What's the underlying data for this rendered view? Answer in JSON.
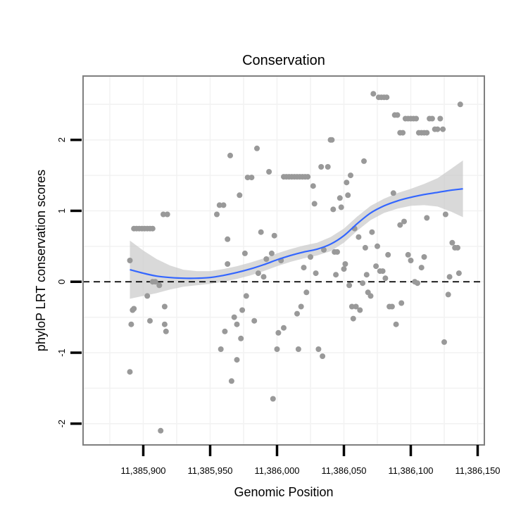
{
  "chart_data": {
    "type": "scatter",
    "title": "Conservation",
    "xlabel": "Genomic Position",
    "ylabel": "phyloP LRT conservation scores",
    "xlim": [
      11385855,
      11386155
    ],
    "ylim": [
      -2.3,
      2.9
    ],
    "x_ticks": [
      11385900,
      11385950,
      11386000,
      11386050,
      11386100,
      11386150
    ],
    "x_tick_labels": [
      "11,385,900",
      "11,385,950",
      "11,386,000",
      "11,386,050",
      "11,386,100",
      "11,386,150"
    ],
    "y_ticks": [
      -2,
      -1,
      0,
      1,
      2
    ],
    "y_tick_labels": [
      "-2",
      "-1",
      "0",
      "1",
      "2"
    ],
    "grid": true,
    "reference_line": {
      "y": 0,
      "style": "dashed"
    },
    "colors": {
      "points": "#999999",
      "smooth": "#3366ff",
      "band": "#cccccc",
      "panel_border": "#7f7f7f",
      "grid": "#f2f2f2"
    },
    "series": [
      {
        "name": "scores",
        "points": [
          [
            11385890,
            0.3
          ],
          [
            11385890,
            -1.27
          ],
          [
            11385891,
            -0.6
          ],
          [
            11385892,
            -0.4
          ],
          [
            11385893,
            -0.38
          ],
          [
            11385893,
            0.75
          ],
          [
            11385895,
            0.75
          ],
          [
            11385897,
            0.75
          ],
          [
            11385899,
            0.75
          ],
          [
            11385901,
            0.75
          ],
          [
            11385903,
            0.75
          ],
          [
            11385905,
            0.75
          ],
          [
            11385907,
            0.75
          ],
          [
            11385903,
            -0.2
          ],
          [
            11385905,
            -0.55
          ],
          [
            11385907,
            0.0
          ],
          [
            11385909,
            0.0
          ],
          [
            11385912,
            -0.05
          ],
          [
            11385913,
            -2.1
          ],
          [
            11385915,
            0.95
          ],
          [
            11385918,
            0.95
          ],
          [
            11385916,
            -0.6
          ],
          [
            11385917,
            -0.7
          ],
          [
            11385916,
            -0.35
          ],
          [
            11385955,
            0.95
          ],
          [
            11385957,
            1.08
          ],
          [
            11385960,
            1.08
          ],
          [
            11385958,
            -0.95
          ],
          [
            11385961,
            -0.7
          ],
          [
            11385963,
            0.25
          ],
          [
            11385963,
            0.6
          ],
          [
            11385965,
            1.78
          ],
          [
            11385966,
            -1.4
          ],
          [
            11385968,
            -0.5
          ],
          [
            11385970,
            -0.6
          ],
          [
            11385970,
            -1.1
          ],
          [
            11385972,
            1.22
          ],
          [
            11385973,
            -0.8
          ],
          [
            11385974,
            -0.4
          ],
          [
            11385976,
            0.4
          ],
          [
            11385977,
            -0.2
          ],
          [
            11385978,
            1.47
          ],
          [
            11385981,
            1.47
          ],
          [
            11385983,
            -0.55
          ],
          [
            11385985,
            1.88
          ],
          [
            11385986,
            0.12
          ],
          [
            11385988,
            0.7
          ],
          [
            11385990,
            0.07
          ],
          [
            11385992,
            0.32
          ],
          [
            11385994,
            1.55
          ],
          [
            11385996,
            0.4
          ],
          [
            11385998,
            0.65
          ],
          [
            11385997,
            -1.65
          ],
          [
            11386000,
            -0.95
          ],
          [
            11386001,
            -0.72
          ],
          [
            11386003,
            0.3
          ],
          [
            11386005,
            -0.65
          ],
          [
            11386005,
            1.48
          ],
          [
            11386007,
            1.48
          ],
          [
            11386009,
            1.48
          ],
          [
            11386011,
            1.48
          ],
          [
            11386013,
            1.48
          ],
          [
            11386015,
            1.48
          ],
          [
            11386017,
            1.48
          ],
          [
            11386019,
            1.48
          ],
          [
            11386021,
            1.48
          ],
          [
            11386023,
            1.48
          ],
          [
            11386015,
            -0.45
          ],
          [
            11386016,
            -0.95
          ],
          [
            11386018,
            -0.35
          ],
          [
            11386020,
            0.2
          ],
          [
            11386022,
            -0.15
          ],
          [
            11386025,
            0.35
          ],
          [
            11386027,
            1.35
          ],
          [
            11386028,
            1.1
          ],
          [
            11386029,
            0.12
          ],
          [
            11386031,
            -0.95
          ],
          [
            11386033,
            1.62
          ],
          [
            11386034,
            -1.05
          ],
          [
            11386035,
            0.45
          ],
          [
            11386038,
            1.62
          ],
          [
            11386040,
            2.0
          ],
          [
            11386041,
            2.0
          ],
          [
            11386042,
            1.02
          ],
          [
            11386043,
            0.42
          ],
          [
            11386044,
            0.1
          ],
          [
            11386045,
            0.42
          ],
          [
            11386047,
            1.18
          ],
          [
            11386048,
            1.05
          ],
          [
            11386050,
            0.18
          ],
          [
            11386051,
            0.25
          ],
          [
            11386052,
            1.4
          ],
          [
            11386053,
            1.22
          ],
          [
            11386054,
            -0.05
          ],
          [
            11386055,
            1.5
          ],
          [
            11386056,
            -0.35
          ],
          [
            11386057,
            -0.52
          ],
          [
            11386058,
            0.75
          ],
          [
            11386059,
            -0.35
          ],
          [
            11386061,
            0.63
          ],
          [
            11386062,
            -0.4
          ],
          [
            11386064,
            -0.02
          ],
          [
            11386065,
            1.7
          ],
          [
            11386066,
            0.48
          ],
          [
            11386067,
            0.1
          ],
          [
            11386068,
            -0.15
          ],
          [
            11386070,
            -0.2
          ],
          [
            11386071,
            0.7
          ],
          [
            11386072,
            2.65
          ],
          [
            11386074,
            0.22
          ],
          [
            11386076,
            2.6
          ],
          [
            11386078,
            2.6
          ],
          [
            11386080,
            2.6
          ],
          [
            11386082,
            2.6
          ],
          [
            11386084,
            -0.35
          ],
          [
            11386086,
            -0.35
          ],
          [
            11386088,
            2.35
          ],
          [
            11386090,
            2.35
          ],
          [
            11386093,
            -0.3
          ],
          [
            11386092,
            2.1
          ],
          [
            11386094,
            2.1
          ],
          [
            11386096,
            2.3
          ],
          [
            11386098,
            2.3
          ],
          [
            11386100,
            2.3
          ],
          [
            11386102,
            2.3
          ],
          [
            11386104,
            2.3
          ],
          [
            11386106,
            2.1
          ],
          [
            11386108,
            2.1
          ],
          [
            11386110,
            2.1
          ],
          [
            11386112,
            2.1
          ],
          [
            11386114,
            2.3
          ],
          [
            11386116,
            2.3
          ],
          [
            11386118,
            2.15
          ],
          [
            11386120,
            2.15
          ],
          [
            11386122,
            2.3
          ],
          [
            11386124,
            2.15
          ],
          [
            11386075,
            0.5
          ],
          [
            11386077,
            0.15
          ],
          [
            11386079,
            0.15
          ],
          [
            11386081,
            0.05
          ],
          [
            11386083,
            0.38
          ],
          [
            11386087,
            1.25
          ],
          [
            11386089,
            -0.6
          ],
          [
            11386092,
            0.8
          ],
          [
            11386095,
            0.85
          ],
          [
            11386098,
            0.38
          ],
          [
            11386100,
            0.3
          ],
          [
            11386103,
            0.0
          ],
          [
            11386105,
            -0.02
          ],
          [
            11386108,
            0.2
          ],
          [
            11386110,
            0.35
          ],
          [
            11386112,
            0.9
          ],
          [
            11386125,
            -0.85
          ],
          [
            11386126,
            0.95
          ],
          [
            11386128,
            -0.18
          ],
          [
            11386129,
            0.07
          ],
          [
            11386131,
            0.55
          ],
          [
            11386133,
            0.48
          ],
          [
            11386135,
            0.48
          ],
          [
            11386136,
            0.12
          ],
          [
            11386137,
            2.5
          ]
        ]
      }
    ],
    "smooth": {
      "x": [
        11385890,
        11385900,
        11385910,
        11385920,
        11385930,
        11385940,
        11385950,
        11385960,
        11385970,
        11385980,
        11385990,
        11386000,
        11386010,
        11386020,
        11386030,
        11386040,
        11386050,
        11386060,
        11386070,
        11386080,
        11386090,
        11386100,
        11386110,
        11386120,
        11386130,
        11386139
      ],
      "y": [
        0.17,
        0.12,
        0.08,
        0.06,
        0.05,
        0.05,
        0.06,
        0.09,
        0.13,
        0.18,
        0.24,
        0.31,
        0.37,
        0.42,
        0.46,
        0.53,
        0.65,
        0.82,
        0.97,
        1.07,
        1.14,
        1.19,
        1.23,
        1.26,
        1.29,
        1.31
      ],
      "se": [
        0.41,
        0.32,
        0.24,
        0.17,
        0.12,
        0.1,
        0.09,
        0.09,
        0.09,
        0.09,
        0.09,
        0.09,
        0.09,
        0.09,
        0.09,
        0.1,
        0.1,
        0.1,
        0.1,
        0.1,
        0.11,
        0.12,
        0.15,
        0.2,
        0.3,
        0.4
      ]
    }
  }
}
